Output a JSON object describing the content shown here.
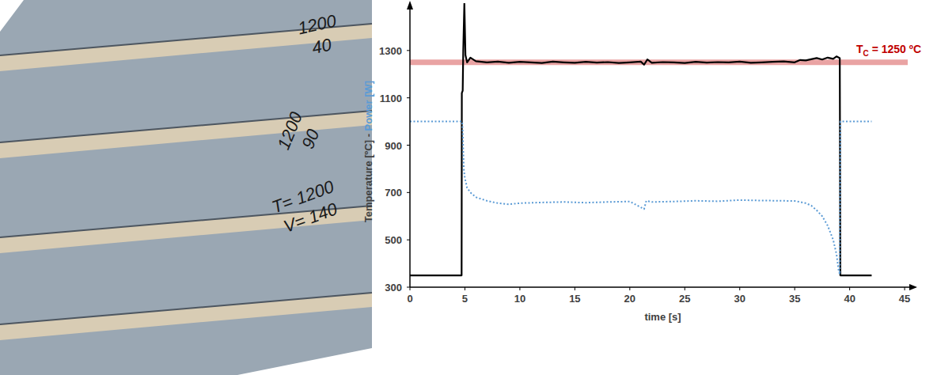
{
  "chart_data": {
    "type": "line",
    "xlabel": "time [s]",
    "ylabel_parts": [
      "Temperature [ºC]",
      " - ",
      "Power [W]"
    ],
    "xlim": [
      0,
      46
    ],
    "ylim": [
      300,
      1500
    ],
    "xticks": [
      0,
      5,
      10,
      15,
      20,
      25,
      30,
      35,
      40,
      45
    ],
    "yticks": [
      300,
      500,
      700,
      900,
      1100,
      1300
    ],
    "grid": false,
    "annotation": {
      "label": "T",
      "subscript": "C",
      "text": " = 1250 ºC",
      "value": 1250,
      "color": "#c00000",
      "band_color": "#e9a3a3"
    },
    "series": [
      {
        "color": "#000000",
        "line_style": "solid",
        "x": [
          0,
          4.7,
          4.72,
          4.8,
          4.85,
          4.95,
          5.05,
          5.2,
          5.5,
          6,
          7,
          8,
          9,
          10,
          11,
          12,
          13,
          14,
          15,
          16,
          17,
          18,
          19,
          20,
          21,
          21.3,
          21.6,
          22,
          23,
          24,
          25,
          26,
          27,
          28,
          29,
          30,
          31,
          32,
          33,
          34,
          35,
          35.5,
          36,
          36.5,
          37,
          37.5,
          38,
          38.5,
          38.8,
          39.1,
          39.15,
          42
        ],
        "values": [
          350,
          350,
          1120,
          1130,
          1300,
          1500,
          1280,
          1250,
          1270,
          1255,
          1250,
          1253,
          1248,
          1252,
          1250,
          1247,
          1253,
          1250,
          1248,
          1252,
          1249,
          1251,
          1247,
          1250,
          1253,
          1240,
          1262,
          1248,
          1251,
          1250,
          1247,
          1252,
          1249,
          1251,
          1250,
          1253,
          1248,
          1250,
          1252,
          1254,
          1250,
          1260,
          1258,
          1263,
          1268,
          1262,
          1270,
          1265,
          1275,
          1268,
          350,
          350
        ]
      },
      {
        "color": "#5b9bd5",
        "line_style": "dotted",
        "x": [
          0,
          4.75,
          4.8,
          4.9,
          5,
          5.2,
          5.5,
          6,
          7,
          8,
          9,
          10,
          12,
          14,
          16,
          18,
          20,
          21.3,
          21.5,
          22,
          24,
          26,
          28,
          30,
          32,
          34,
          35,
          35.5,
          36,
          36.5,
          37,
          37.5,
          38,
          38.5,
          38.8,
          39,
          39.1,
          39.15,
          42
        ],
        "values": [
          1000,
          1000,
          960,
          800,
          760,
          720,
          700,
          680,
          665,
          655,
          650,
          655,
          658,
          660,
          657,
          660,
          662,
          630,
          665,
          660,
          662,
          665,
          663,
          668,
          666,
          665,
          664,
          660,
          655,
          645,
          625,
          600,
          560,
          500,
          440,
          370,
          355,
          1000,
          1000
        ]
      }
    ]
  },
  "photo": {
    "labels": [
      [
        "1200",
        "40"
      ],
      [
        "1200",
        "90"
      ],
      [
        "T= 1200",
        "V= 140"
      ]
    ]
  }
}
